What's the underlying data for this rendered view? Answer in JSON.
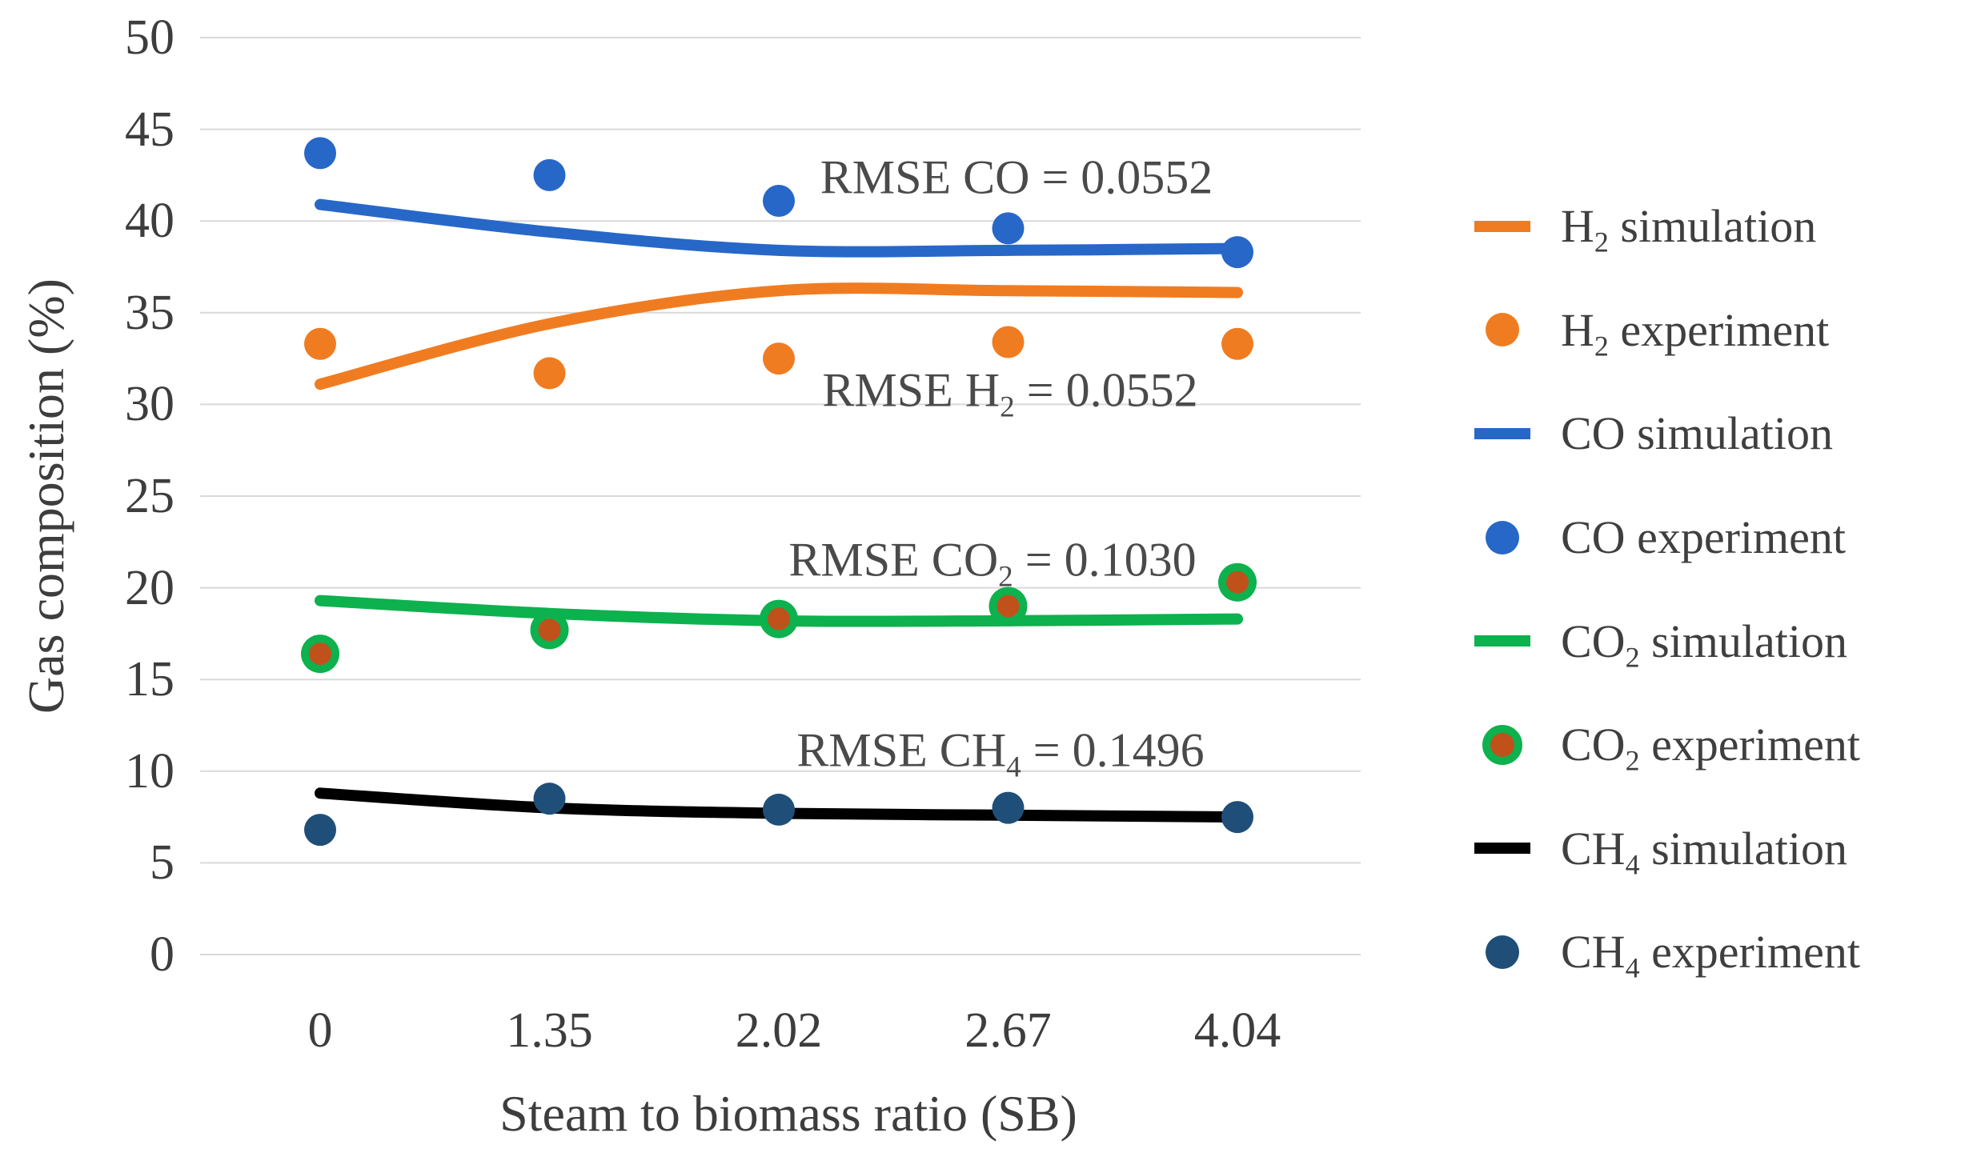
{
  "chart_data": {
    "type": "line",
    "title": "",
    "xlabel": "Steam to biomass ratio (SB)",
    "ylabel": "Gas composition (%)",
    "x_categories": [
      "0",
      "1.35",
      "2.02",
      "2.67",
      "4.04"
    ],
    "x_values": [
      0,
      1.35,
      2.02,
      2.67,
      4.04
    ],
    "y_ticks": [
      0,
      5,
      10,
      15,
      20,
      25,
      30,
      35,
      40,
      45,
      50
    ],
    "ylim": [
      0,
      50
    ],
    "grid": "horizontal",
    "gridline_color": "#d9d9d9",
    "legend_position": "right",
    "series": [
      {
        "name": "H2 simulation",
        "type": "line",
        "color": "#f07c22",
        "values": [
          31.1,
          34.4,
          36.2,
          36.2,
          36.1
        ]
      },
      {
        "name": "H2 experiment",
        "type": "scatter",
        "color": "#f07c22",
        "values": [
          33.3,
          31.7,
          32.5,
          33.4,
          33.3
        ]
      },
      {
        "name": "CO simulation",
        "type": "line",
        "color": "#2767c8",
        "values": [
          40.9,
          39.4,
          38.4,
          38.4,
          38.5
        ]
      },
      {
        "name": "CO experiment",
        "type": "scatter",
        "color": "#2767c8",
        "values": [
          43.7,
          42.5,
          41.1,
          39.6,
          38.3
        ]
      },
      {
        "name": "CO2 simulation",
        "type": "line",
        "color": "#0db14d",
        "values": [
          19.3,
          18.6,
          18.2,
          18.2,
          18.3
        ]
      },
      {
        "name": "CO2 experiment",
        "type": "scatter",
        "color": "#c0511b",
        "marker_ring": "#0db14d",
        "values": [
          16.4,
          17.7,
          18.3,
          19.0,
          20.3
        ]
      },
      {
        "name": "CH4 simulation",
        "type": "line",
        "color": "#000000",
        "values": [
          8.8,
          8.0,
          7.7,
          7.6,
          7.5
        ]
      },
      {
        "name": "CH4 experiment",
        "type": "scatter",
        "color": "#1f4e79",
        "values": [
          6.8,
          8.5,
          7.9,
          8.0,
          7.5
        ]
      }
    ],
    "annotations": [
      {
        "pre": "RMSE CO = 0.0552",
        "sub": "",
        "post": ""
      },
      {
        "pre": "RMSE H",
        "sub": "2",
        "post": " = 0.0552"
      },
      {
        "pre": "RMSE CO",
        "sub": "2",
        "post": " = 0.1030"
      },
      {
        "pre": "RMSE CH",
        "sub": "4",
        "post": " = 0.1496"
      }
    ]
  },
  "legend": {
    "items": [
      {
        "pre": "H",
        "sub": "2",
        "post": " simulation",
        "marker": "line",
        "color": "#f07c22"
      },
      {
        "pre": "H",
        "sub": "2",
        "post": " experiment",
        "marker": "dot",
        "color": "#f07c22"
      },
      {
        "pre": "CO",
        "sub": "",
        "post": " simulation",
        "marker": "line",
        "color": "#2767c8"
      },
      {
        "pre": "CO",
        "sub": "",
        "post": " experiment",
        "marker": "dot",
        "color": "#2767c8"
      },
      {
        "pre": "CO",
        "sub": "2",
        "post": " simulation",
        "marker": "line",
        "color": "#0db14d"
      },
      {
        "pre": "CO",
        "sub": "2",
        "post": " experiment",
        "marker": "ring-dot",
        "color": "#c0511b",
        "ring": "#0db14d"
      },
      {
        "pre": "CH",
        "sub": "4",
        "post": " simulation",
        "marker": "line",
        "color": "#000000"
      },
      {
        "pre": "CH",
        "sub": "4",
        "post": " experiment",
        "marker": "dot",
        "color": "#1f4e79"
      }
    ]
  },
  "colors": {
    "h2": "#f07c22",
    "co": "#2767c8",
    "co2_line": "#0db14d",
    "co2_dot_fill": "#c0511b",
    "ch4_line": "#000000",
    "ch4_dot": "#1f4e79",
    "grid": "#d9d9d9",
    "text": "#3d3d3d"
  }
}
